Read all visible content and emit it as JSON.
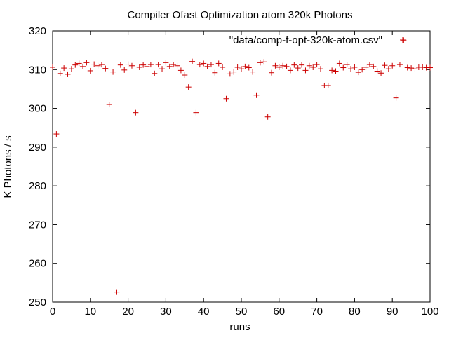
{
  "chart_data": {
    "type": "scatter",
    "title": "Compiler Ofast Optimization atom 320k Photons",
    "xlabel": "runs",
    "ylabel": "K Photons / s",
    "xlim": [
      0,
      100
    ],
    "ylim": [
      250,
      320
    ],
    "xticks": [
      "0",
      "10",
      "20",
      "30",
      "40",
      "50",
      "60",
      "70",
      "80",
      "90",
      "100"
    ],
    "yticks": [
      "250",
      "260",
      "270",
      "280",
      "290",
      "300",
      "310",
      "320"
    ],
    "legend": "top-right",
    "grid": false,
    "marker": "+",
    "color": "#cc0000",
    "series": [
      {
        "name": "\"data/comp-f-opt-320k-atom.csv\"",
        "x": [
          0,
          1,
          2,
          3,
          4,
          5,
          6,
          7,
          8,
          9,
          10,
          11,
          12,
          13,
          14,
          15,
          16,
          17,
          18,
          19,
          20,
          21,
          22,
          23,
          24,
          25,
          26,
          27,
          28,
          29,
          30,
          31,
          32,
          33,
          34,
          35,
          36,
          37,
          38,
          39,
          40,
          41,
          42,
          43,
          44,
          45,
          46,
          47,
          48,
          49,
          50,
          51,
          52,
          53,
          54,
          55,
          56,
          57,
          58,
          59,
          60,
          61,
          62,
          63,
          64,
          65,
          66,
          67,
          68,
          69,
          70,
          71,
          72,
          73,
          74,
          75,
          76,
          77,
          78,
          79,
          80,
          81,
          82,
          83,
          84,
          85,
          86,
          87,
          88,
          89,
          90,
          91,
          92,
          93,
          94,
          95,
          96,
          97,
          98,
          99,
          100
        ],
        "y": [
          310.6,
          293.4,
          309.0,
          310.4,
          308.8,
          310.2,
          311.2,
          311.6,
          310.8,
          311.8,
          309.7,
          311.4,
          311.0,
          311.3,
          310.3,
          301.0,
          309.4,
          252.6,
          311.2,
          309.9,
          311.4,
          311.0,
          298.9,
          310.6,
          311.2,
          310.8,
          311.3,
          309.0,
          311.3,
          310.2,
          311.8,
          310.8,
          311.3,
          311.0,
          309.8,
          308.6,
          305.5,
          312.1,
          298.9,
          311.3,
          311.6,
          310.8,
          311.3,
          309.2,
          311.6,
          310.6,
          302.5,
          308.9,
          309.4,
          310.6,
          310.2,
          310.8,
          310.5,
          309.4,
          303.4,
          311.8,
          312.0,
          297.8,
          309.2,
          311.0,
          310.6,
          311.0,
          310.8,
          309.8,
          311.2,
          310.4,
          311.2,
          309.8,
          311.0,
          310.6,
          311.3,
          310.2,
          305.9,
          305.9,
          309.8,
          309.6,
          311.6,
          310.5,
          311.3,
          310.2,
          310.6,
          309.3,
          310.0,
          310.6,
          311.3,
          310.8,
          309.6,
          309.1,
          311.1,
          310.2,
          311.0,
          302.7,
          311.3,
          317.6,
          310.5,
          310.4,
          310.2,
          310.6,
          310.6,
          310.5,
          310.5
        ]
      }
    ]
  }
}
